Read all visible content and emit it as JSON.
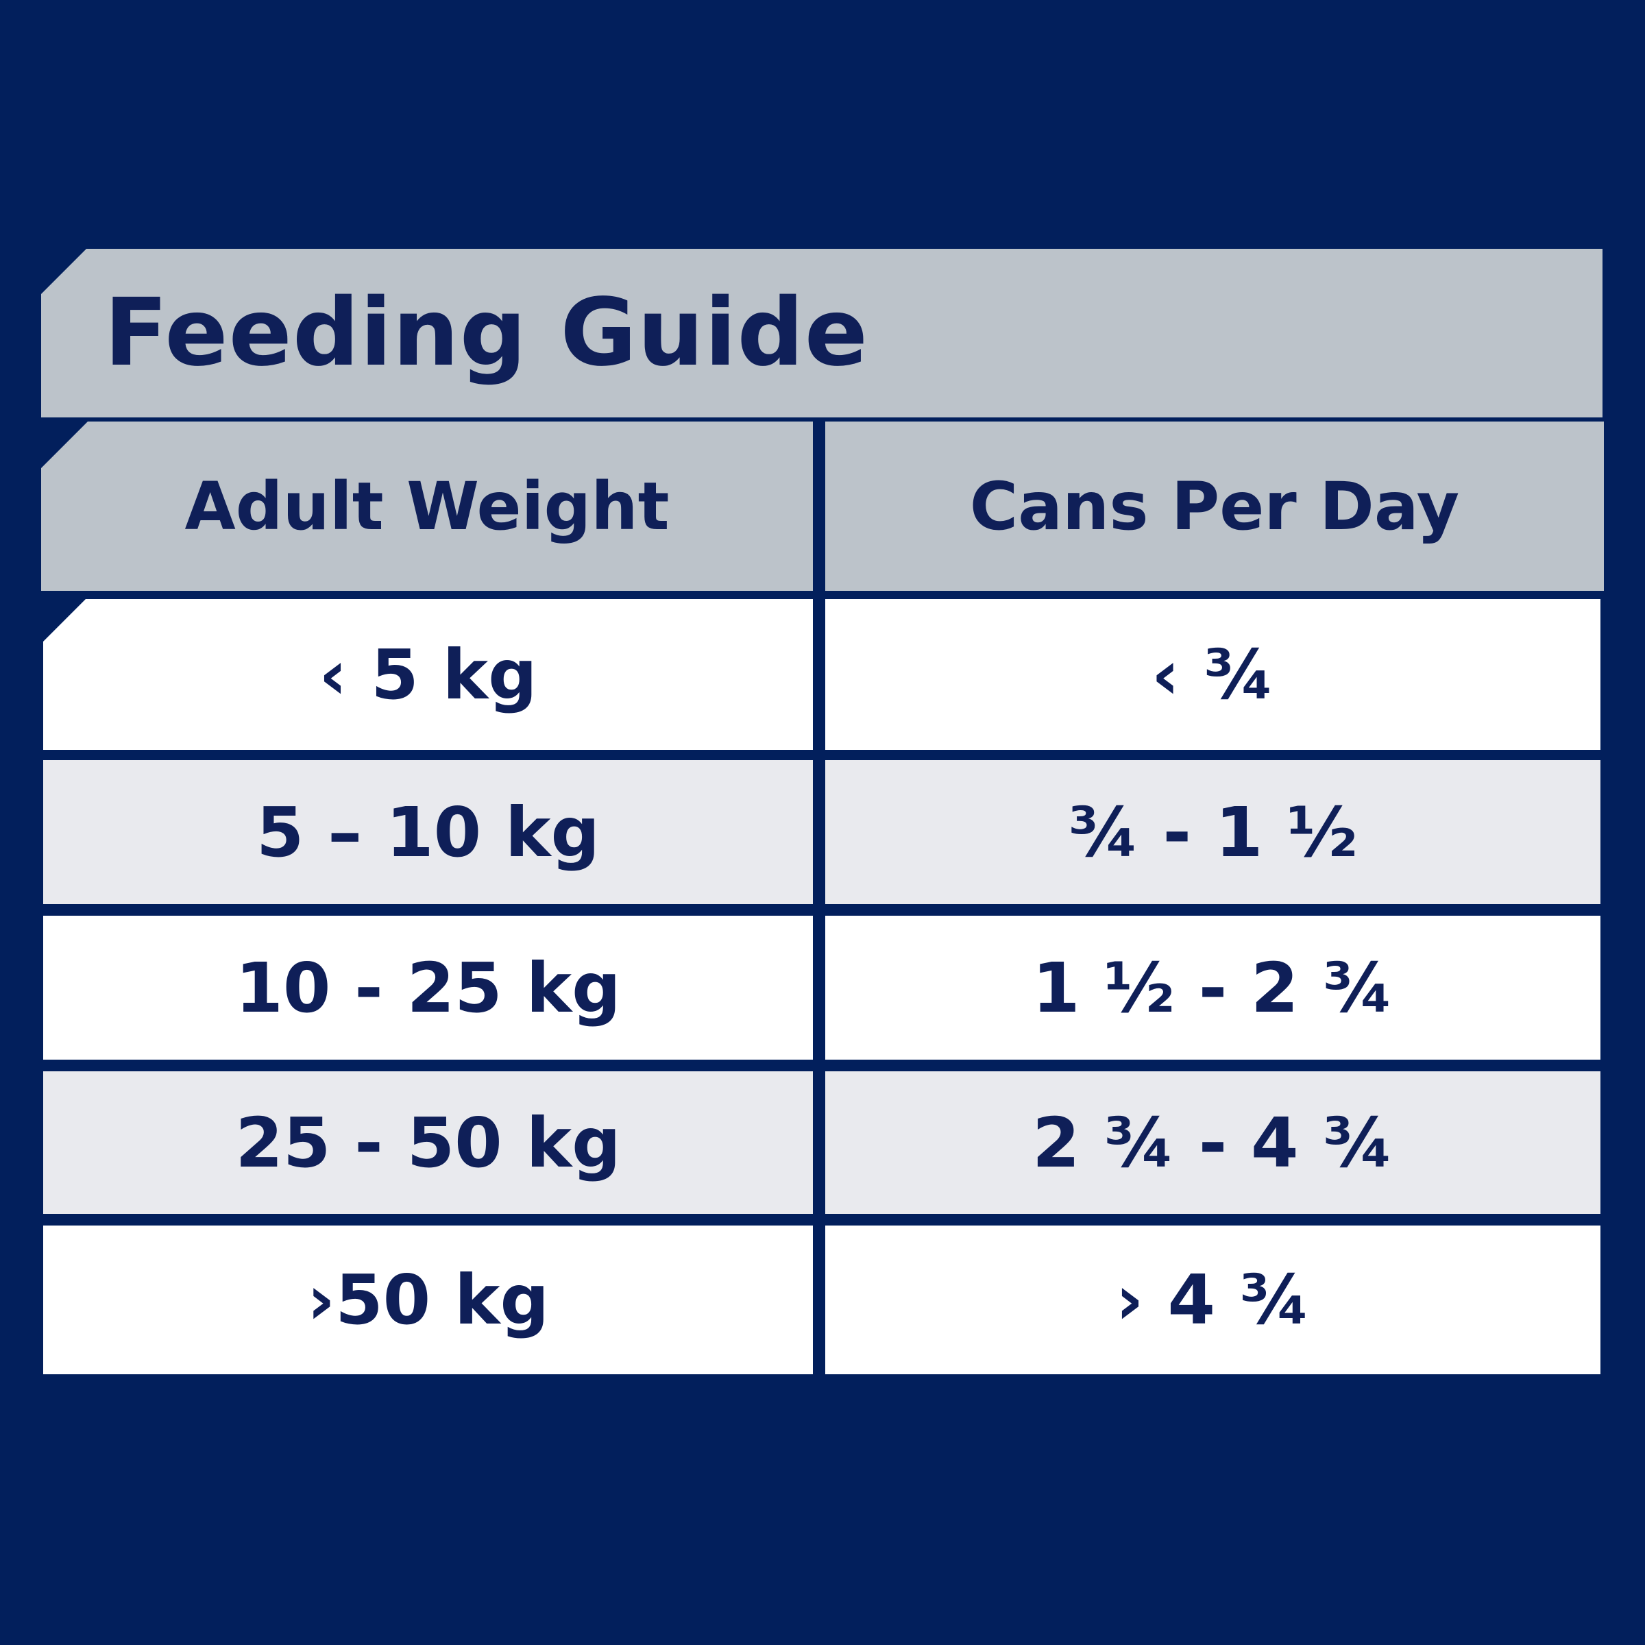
{
  "title": "Feeding Guide",
  "table": {
    "headers": [
      "Adult Weight",
      "Cans Per Day"
    ],
    "rows": [
      {
        "weight": "‹ 5 kg",
        "cans": "‹ ¾"
      },
      {
        "weight": "5 – 10 kg",
        "cans": "¾ - 1 ½"
      },
      {
        "weight": "10 - 25 kg",
        "cans": "1 ½ - 2 ¾"
      },
      {
        "weight": "25 - 50 kg",
        "cans": "2 ¾ - 4 ¾"
      },
      {
        "weight": "›50 kg",
        "cans": "› 4 ¾"
      }
    ]
  },
  "colors": {
    "background": "#021f5c",
    "header_bg": "#bcc3ca",
    "row_white": "#ffffff",
    "row_grey": "#e9eaee",
    "text": "#0f1f58"
  }
}
